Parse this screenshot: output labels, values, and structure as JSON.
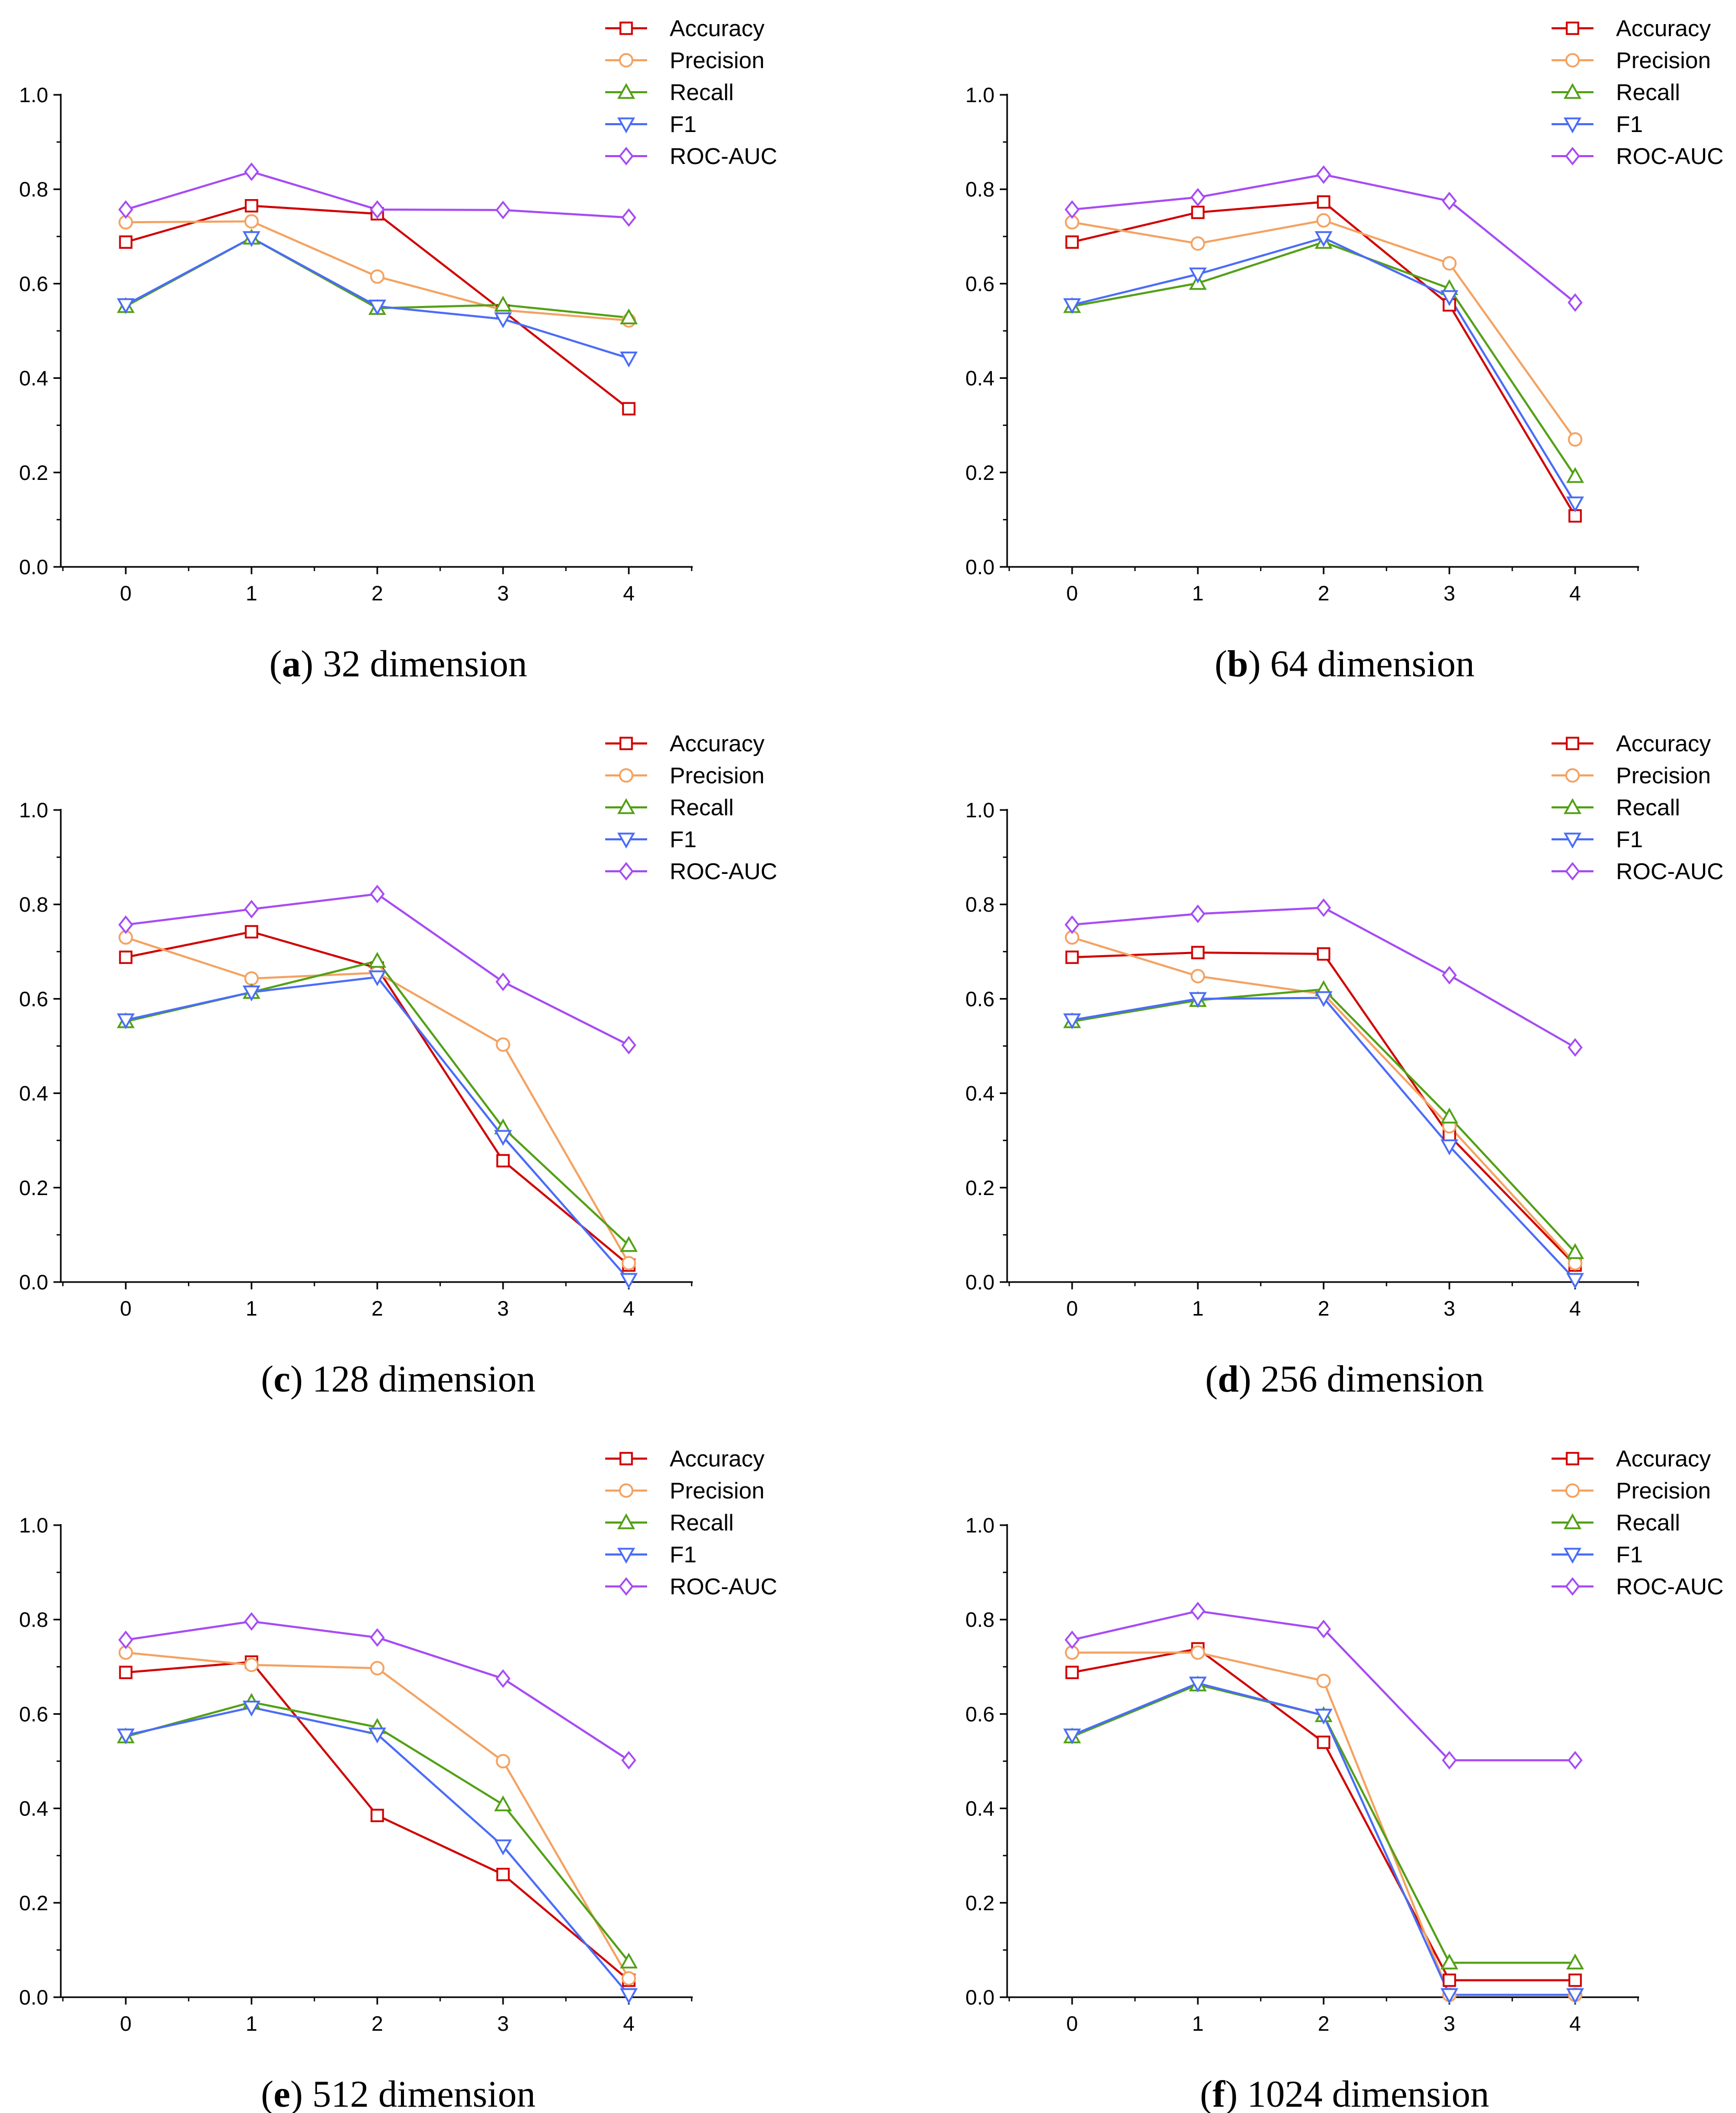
{
  "figure": {
    "series_names": [
      "Accuracy",
      "Precision",
      "Recall",
      "F1",
      "ROC-AUC"
    ],
    "series_colors": [
      "#d00000",
      "#f4a261",
      "#52a016",
      "#4a6cf7",
      "#a64bf4"
    ],
    "series_markers": [
      "square-marker",
      "circle-marker",
      "triangle-up-marker",
      "triangle-down-marker",
      "diamond-marker"
    ]
  },
  "chart_data": [
    {
      "type": "line",
      "caption_letter": "a",
      "caption_text": " 32 dimension",
      "title": "(a) 32 dimension",
      "x": [
        0,
        1,
        2,
        3,
        4
      ],
      "xticks": [
        "0",
        "1",
        "2",
        "3",
        "4"
      ],
      "yticks": [
        "0.0",
        "0.2",
        "0.4",
        "0.6",
        "0.8",
        "1.0"
      ],
      "ylim": [
        0,
        1
      ],
      "xlabel": "",
      "ylabel": "",
      "legend_position": "top-right",
      "series": [
        {
          "name": "Accuracy",
          "values": [
            0.688,
            0.765,
            0.748,
            0.542,
            0.335
          ]
        },
        {
          "name": "Precision",
          "values": [
            0.73,
            0.732,
            0.615,
            0.544,
            0.522
          ]
        },
        {
          "name": "Recall",
          "values": [
            0.552,
            0.697,
            0.548,
            0.555,
            0.528
          ]
        },
        {
          "name": "F1",
          "values": [
            0.555,
            0.697,
            0.552,
            0.525,
            0.442
          ]
        },
        {
          "name": "ROC-AUC",
          "values": [
            0.757,
            0.837,
            0.757,
            0.756,
            0.74
          ]
        }
      ]
    },
    {
      "type": "line",
      "caption_letter": "b",
      "caption_text": " 64 dimension",
      "title": "(b) 64 dimension",
      "x": [
        0,
        1,
        2,
        3,
        4
      ],
      "xticks": [
        "0",
        "1",
        "2",
        "3",
        "4"
      ],
      "yticks": [
        "0.0",
        "0.2",
        "0.4",
        "0.6",
        "0.8",
        "1.0"
      ],
      "ylim": [
        0,
        1
      ],
      "xlabel": "",
      "ylabel": "",
      "legend_position": "top-right",
      "series": [
        {
          "name": "Accuracy",
          "values": [
            0.688,
            0.751,
            0.773,
            0.555,
            0.108
          ]
        },
        {
          "name": "Precision",
          "values": [
            0.73,
            0.685,
            0.734,
            0.643,
            0.27
          ]
        },
        {
          "name": "Recall",
          "values": [
            0.552,
            0.601,
            0.688,
            0.59,
            0.192
          ]
        },
        {
          "name": "F1",
          "values": [
            0.555,
            0.62,
            0.697,
            0.572,
            0.135
          ]
        },
        {
          "name": "ROC-AUC",
          "values": [
            0.757,
            0.783,
            0.831,
            0.775,
            0.56
          ]
        }
      ]
    },
    {
      "type": "line",
      "caption_letter": "c",
      "caption_text": " 128 dimension",
      "title": "(c) 128 dimension",
      "x": [
        0,
        1,
        2,
        3,
        4
      ],
      "xticks": [
        "0",
        "1",
        "2",
        "3",
        "4"
      ],
      "yticks": [
        "0.0",
        "0.2",
        "0.4",
        "0.6",
        "0.8",
        "1.0"
      ],
      "ylim": [
        0,
        1
      ],
      "xlabel": "",
      "ylabel": "",
      "legend_position": "top-right",
      "series": [
        {
          "name": "Accuracy",
          "values": [
            0.688,
            0.742,
            0.665,
            0.257,
            0.036
          ]
        },
        {
          "name": "Precision",
          "values": [
            0.73,
            0.643,
            0.655,
            0.503,
            0.04
          ]
        },
        {
          "name": "Recall",
          "values": [
            0.552,
            0.614,
            0.68,
            0.327,
            0.078
          ]
        },
        {
          "name": "F1",
          "values": [
            0.555,
            0.614,
            0.646,
            0.308,
            0.005
          ]
        },
        {
          "name": "ROC-AUC",
          "values": [
            0.757,
            0.79,
            0.822,
            0.636,
            0.502
          ]
        }
      ]
    },
    {
      "type": "line",
      "caption_letter": "d",
      "caption_text": " 256 dimension",
      "title": "(d) 256 dimension",
      "x": [
        0,
        1,
        2,
        3,
        4
      ],
      "xticks": [
        "0",
        "1",
        "2",
        "3",
        "4"
      ],
      "yticks": [
        "0.0",
        "0.2",
        "0.4",
        "0.6",
        "0.8",
        "1.0"
      ],
      "ylim": [
        0,
        1
      ],
      "xlabel": "",
      "ylabel": "",
      "legend_position": "top-right",
      "series": [
        {
          "name": "Accuracy",
          "values": [
            0.688,
            0.698,
            0.695,
            0.31,
            0.036
          ]
        },
        {
          "name": "Precision",
          "values": [
            0.73,
            0.648,
            0.61,
            0.33,
            0.04
          ]
        },
        {
          "name": "Recall",
          "values": [
            0.552,
            0.597,
            0.62,
            0.35,
            0.063
          ]
        },
        {
          "name": "F1",
          "values": [
            0.555,
            0.6,
            0.602,
            0.288,
            0.005
          ]
        },
        {
          "name": "ROC-AUC",
          "values": [
            0.757,
            0.78,
            0.793,
            0.65,
            0.497
          ]
        }
      ]
    },
    {
      "type": "line",
      "caption_letter": "e",
      "caption_text": " 512 dimension",
      "title": "(e) 512 dimension",
      "x": [
        0,
        1,
        2,
        3,
        4
      ],
      "xticks": [
        "0",
        "1",
        "2",
        "3",
        "4"
      ],
      "yticks": [
        "0.0",
        "0.2",
        "0.4",
        "0.6",
        "0.8",
        "1.0"
      ],
      "ylim": [
        0,
        1
      ],
      "xlabel": "",
      "ylabel": "",
      "legend_position": "top-right",
      "series": [
        {
          "name": "Accuracy",
          "values": [
            0.688,
            0.71,
            0.385,
            0.26,
            0.036
          ]
        },
        {
          "name": "Precision",
          "values": [
            0.73,
            0.704,
            0.697,
            0.5,
            0.04
          ]
        },
        {
          "name": "Recall",
          "values": [
            0.552,
            0.625,
            0.572,
            0.408,
            0.075
          ]
        },
        {
          "name": "F1",
          "values": [
            0.555,
            0.614,
            0.557,
            0.32,
            0.005
          ]
        },
        {
          "name": "ROC-AUC",
          "values": [
            0.757,
            0.796,
            0.762,
            0.675,
            0.502
          ]
        }
      ]
    },
    {
      "type": "line",
      "caption_letter": "f",
      "caption_text": " 1024 dimension",
      "title": "(f) 1024 dimension",
      "x": [
        0,
        1,
        2,
        3,
        4
      ],
      "xticks": [
        "0",
        "1",
        "2",
        "3",
        "4"
      ],
      "yticks": [
        "0.0",
        "0.2",
        "0.4",
        "0.6",
        "0.8",
        "1.0"
      ],
      "ylim": [
        0,
        1
      ],
      "xlabel": "",
      "ylabel": "",
      "legend_position": "top-right",
      "series": [
        {
          "name": "Accuracy",
          "values": [
            0.688,
            0.738,
            0.54,
            0.036,
            0.036
          ]
        },
        {
          "name": "Precision",
          "values": [
            0.73,
            0.73,
            0.67,
            0.005,
            0.005
          ]
        },
        {
          "name": "Recall",
          "values": [
            0.552,
            0.662,
            0.597,
            0.073,
            0.073
          ]
        },
        {
          "name": "F1",
          "values": [
            0.555,
            0.665,
            0.597,
            0.005,
            0.005
          ]
        },
        {
          "name": "ROC-AUC",
          "values": [
            0.757,
            0.818,
            0.78,
            0.502,
            0.502
          ]
        }
      ]
    }
  ]
}
